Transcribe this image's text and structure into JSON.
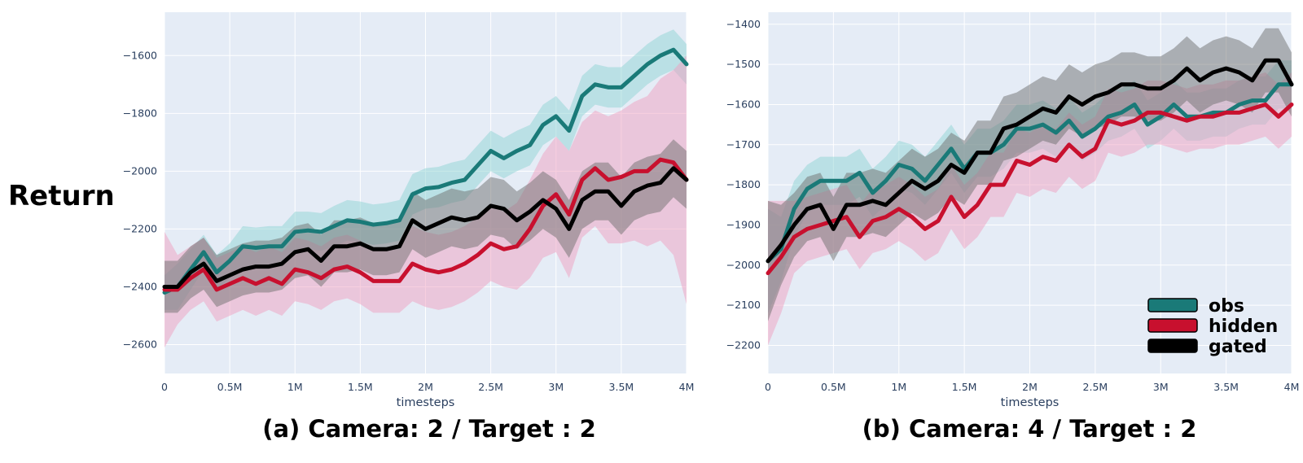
{
  "figure": {
    "ylabel": "Return",
    "colors": {
      "plot_bg": "#e5ecf6",
      "grid": "#ffffff",
      "tick_text": "#2a3f5f"
    }
  },
  "legend": {
    "position": "bottom-right of panel (b)",
    "items": [
      {
        "name": "obs",
        "color": "#1a7a78"
      },
      {
        "name": "hidden",
        "color": "#c8102e"
      },
      {
        "name": "gated",
        "color": "#000000"
      }
    ]
  },
  "chart_data": [
    {
      "type": "line",
      "caption": "(a) Camera: 2 / Target : 2",
      "xlabel": "timesteps",
      "xlim": [
        0,
        4
      ],
      "ylim": [
        -2700,
        -1450
      ],
      "xticks": [
        0,
        0.5,
        1,
        1.5,
        2,
        2.5,
        3,
        3.5,
        4
      ],
      "xtick_labels": [
        "0",
        "0.5M",
        "1M",
        "1.5M",
        "2M",
        "2.5M",
        "3M",
        "3.5M",
        "4M"
      ],
      "yticks": [
        -2600,
        -2400,
        -2200,
        -2000,
        -1800,
        -1600
      ],
      "ytick_labels": [
        "−2600",
        "−2400",
        "−2200",
        "−2000",
        "−1800",
        "−1600"
      ],
      "grid": true,
      "x": [
        0,
        0.1,
        0.2,
        0.3,
        0.4,
        0.5,
        0.6,
        0.7,
        0.8,
        0.9,
        1.0,
        1.1,
        1.2,
        1.3,
        1.4,
        1.5,
        1.6,
        1.7,
        1.8,
        1.9,
        2.0,
        2.1,
        2.2,
        2.3,
        2.4,
        2.5,
        2.6,
        2.7,
        2.8,
        2.9,
        3.0,
        3.1,
        3.2,
        3.3,
        3.4,
        3.5,
        3.6,
        3.7,
        3.8,
        3.9,
        4.0
      ],
      "series": [
        {
          "name": "obs",
          "color": "#1a7a78",
          "band_color": "#8fd3d3",
          "values": [
            -2420,
            -2400,
            -2340,
            -2280,
            -2350,
            -2310,
            -2260,
            -2265,
            -2260,
            -2260,
            -2210,
            -2205,
            -2210,
            -2190,
            -2170,
            -2175,
            -2185,
            -2180,
            -2170,
            -2080,
            -2060,
            -2055,
            -2040,
            -2030,
            -1980,
            -1930,
            -1955,
            -1930,
            -1910,
            -1840,
            -1810,
            -1860,
            -1740,
            -1700,
            -1710,
            -1710,
            -1670,
            -1630,
            -1600,
            -1580,
            -1630
          ],
          "band": [
            60,
            80,
            70,
            60,
            60,
            60,
            70,
            70,
            70,
            70,
            70,
            65,
            65,
            70,
            70,
            70,
            70,
            70,
            70,
            70,
            70,
            70,
            70,
            70,
            70,
            70,
            70,
            70,
            70,
            70,
            70,
            70,
            70,
            70,
            70,
            70,
            70,
            70,
            70,
            70,
            70
          ]
        },
        {
          "name": "hidden",
          "color": "#c8102e",
          "band_color": "#ef9fbf",
          "values": [
            -2410,
            -2410,
            -2370,
            -2340,
            -2410,
            -2390,
            -2370,
            -2390,
            -2370,
            -2390,
            -2340,
            -2350,
            -2370,
            -2340,
            -2330,
            -2350,
            -2380,
            -2380,
            -2380,
            -2320,
            -2340,
            -2350,
            -2340,
            -2320,
            -2290,
            -2250,
            -2270,
            -2260,
            -2200,
            -2120,
            -2080,
            -2150,
            -2030,
            -1990,
            -2030,
            -2020,
            -2000,
            -2000,
            -1960,
            -1970,
            -2030
          ],
          "band": [
            200,
            120,
            110,
            110,
            110,
            110,
            110,
            110,
            110,
            110,
            110,
            110,
            110,
            110,
            110,
            110,
            110,
            110,
            110,
            130,
            130,
            130,
            130,
            130,
            130,
            130,
            130,
            150,
            170,
            180,
            200,
            220,
            200,
            200,
            220,
            230,
            240,
            260,
            280,
            320,
            430
          ]
        },
        {
          "name": "gated",
          "color": "#000000",
          "band_color": "#707070",
          "values": [
            -2400,
            -2400,
            -2350,
            -2320,
            -2380,
            -2360,
            -2340,
            -2330,
            -2330,
            -2320,
            -2280,
            -2270,
            -2310,
            -2260,
            -2260,
            -2250,
            -2270,
            -2270,
            -2260,
            -2170,
            -2200,
            -2180,
            -2160,
            -2170,
            -2160,
            -2120,
            -2130,
            -2170,
            -2140,
            -2100,
            -2130,
            -2200,
            -2100,
            -2070,
            -2070,
            -2120,
            -2070,
            -2050,
            -2040,
            -1990,
            -2030
          ],
          "band": [
            90,
            90,
            90,
            90,
            90,
            90,
            90,
            90,
            90,
            90,
            90,
            90,
            90,
            90,
            90,
            90,
            90,
            90,
            90,
            100,
            100,
            100,
            100,
            100,
            100,
            100,
            100,
            100,
            100,
            100,
            100,
            100,
            100,
            100,
            100,
            100,
            100,
            100,
            100,
            100,
            100
          ]
        }
      ]
    },
    {
      "type": "line",
      "caption": "(b) Camera: 4 / Target : 2",
      "xlabel": "timesteps",
      "xlim": [
        0,
        4
      ],
      "ylim": [
        -2270,
        -1370
      ],
      "xticks": [
        0,
        0.5,
        1,
        1.5,
        2,
        2.5,
        3,
        3.5,
        4
      ],
      "xtick_labels": [
        "0",
        "0.5M",
        "1M",
        "1.5M",
        "2M",
        "2.5M",
        "3M",
        "3.5M",
        "4M"
      ],
      "yticks": [
        -2200,
        -2100,
        -2000,
        -1900,
        -1800,
        -1700,
        -1600,
        -1500,
        -1400
      ],
      "ytick_labels": [
        "−2200",
        "−2100",
        "−2000",
        "−1900",
        "−1800",
        "−1700",
        "−1600",
        "−1500",
        "−1400"
      ],
      "grid": true,
      "x": [
        0,
        0.1,
        0.2,
        0.3,
        0.4,
        0.5,
        0.6,
        0.7,
        0.8,
        0.9,
        1.0,
        1.1,
        1.2,
        1.3,
        1.4,
        1.5,
        1.6,
        1.7,
        1.8,
        1.9,
        2.0,
        2.1,
        2.2,
        2.3,
        2.4,
        2.5,
        2.6,
        2.7,
        2.8,
        2.9,
        3.0,
        3.1,
        3.2,
        3.3,
        3.4,
        3.5,
        3.6,
        3.7,
        3.8,
        3.9,
        4.0
      ],
      "series": [
        {
          "name": "obs",
          "color": "#1a7a78",
          "band_color": "#8fd3d3",
          "values": [
            -1990,
            -1960,
            -1860,
            -1810,
            -1790,
            -1790,
            -1790,
            -1770,
            -1820,
            -1790,
            -1750,
            -1760,
            -1790,
            -1750,
            -1710,
            -1760,
            -1720,
            -1720,
            -1700,
            -1660,
            -1660,
            -1650,
            -1670,
            -1640,
            -1680,
            -1660,
            -1630,
            -1620,
            -1600,
            -1650,
            -1630,
            -1600,
            -1630,
            -1630,
            -1620,
            -1620,
            -1600,
            -1590,
            -1590,
            -1550,
            -1550
          ],
          "band": [
            130,
            80,
            70,
            60,
            60,
            60,
            60,
            60,
            60,
            60,
            60,
            60,
            60,
            60,
            60,
            60,
            60,
            60,
            60,
            60,
            60,
            60,
            60,
            60,
            60,
            60,
            60,
            60,
            60,
            60,
            60,
            60,
            60,
            60,
            60,
            60,
            60,
            60,
            60,
            60,
            60
          ]
        },
        {
          "name": "hidden",
          "color": "#c8102e",
          "band_color": "#ef9fbf",
          "values": [
            -2020,
            -1980,
            -1930,
            -1910,
            -1900,
            -1890,
            -1880,
            -1930,
            -1890,
            -1880,
            -1860,
            -1880,
            -1910,
            -1890,
            -1830,
            -1880,
            -1850,
            -1800,
            -1800,
            -1740,
            -1750,
            -1730,
            -1740,
            -1700,
            -1730,
            -1710,
            -1640,
            -1650,
            -1640,
            -1620,
            -1620,
            -1630,
            -1640,
            -1630,
            -1630,
            -1620,
            -1620,
            -1610,
            -1600,
            -1630,
            -1600
          ],
          "band": [
            180,
            140,
            90,
            80,
            80,
            80,
            80,
            80,
            80,
            80,
            80,
            80,
            80,
            80,
            80,
            80,
            80,
            80,
            80,
            80,
            80,
            80,
            80,
            80,
            80,
            80,
            80,
            80,
            80,
            80,
            80,
            80,
            80,
            80,
            80,
            80,
            80,
            80,
            80,
            80,
            80
          ]
        },
        {
          "name": "gated",
          "color": "#000000",
          "band_color": "#707070",
          "values": [
            -1990,
            -1950,
            -1900,
            -1860,
            -1850,
            -1910,
            -1850,
            -1850,
            -1840,
            -1850,
            -1820,
            -1790,
            -1810,
            -1790,
            -1750,
            -1770,
            -1720,
            -1720,
            -1660,
            -1650,
            -1630,
            -1610,
            -1620,
            -1580,
            -1600,
            -1580,
            -1570,
            -1550,
            -1550,
            -1560,
            -1560,
            -1540,
            -1510,
            -1540,
            -1520,
            -1510,
            -1520,
            -1540,
            -1490,
            -1490,
            -1550
          ],
          "band": [
            150,
            100,
            80,
            80,
            80,
            80,
            80,
            80,
            80,
            80,
            80,
            80,
            80,
            80,
            80,
            80,
            80,
            80,
            80,
            80,
            80,
            80,
            80,
            80,
            80,
            80,
            80,
            80,
            80,
            80,
            80,
            80,
            80,
            80,
            80,
            80,
            80,
            80,
            80,
            80,
            80
          ]
        }
      ]
    }
  ]
}
